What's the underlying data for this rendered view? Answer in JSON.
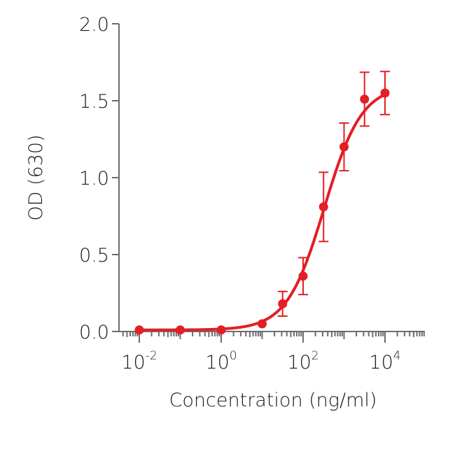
{
  "chart_data": {
    "type": "scatter",
    "title": "",
    "xlabel": "Concentration (ng/ml)",
    "ylabel": "OD (630)",
    "xscale": "log",
    "xlim_log10": [
      -2.5,
      4.97
    ],
    "ylim": [
      0,
      2.0
    ],
    "grid": false,
    "legend": null,
    "x_ticks": [
      {
        "base": "10",
        "exp": "-2",
        "value": 0.01
      },
      {
        "base": "10",
        "exp": "0",
        "value": 1
      },
      {
        "base": "10",
        "exp": "2",
        "value": 100
      },
      {
        "base": "10",
        "exp": "4",
        "value": 10000
      }
    ],
    "y_ticks": [
      "0.0",
      "0.5",
      "1.0",
      "1.5",
      "2.0"
    ],
    "series": [
      {
        "name": "OD (630)",
        "color": "#e31e24",
        "fit": "4-parameter logistic",
        "x": [
          0.01,
          0.1,
          1,
          10,
          31.6,
          100,
          316,
          1000,
          3162,
          10000
        ],
        "values": [
          0.01,
          0.01,
          0.01,
          0.05,
          0.18,
          0.36,
          0.81,
          1.2,
          1.51,
          1.55
        ],
        "error": [
          null,
          null,
          null,
          null,
          0.08,
          0.12,
          0.225,
          0.155,
          0.175,
          0.14
        ]
      }
    ],
    "curve_params": {
      "bottom": 0.01,
      "top": 1.6,
      "ec50": 330,
      "hill": 0.95
    }
  },
  "axes": {
    "x_title": "Concentration (ng/ml)",
    "y_title": "OD (630)"
  },
  "colors": {
    "series": "#e31e24",
    "axis": "#6d6d6d",
    "text": "#1a1a1a"
  }
}
